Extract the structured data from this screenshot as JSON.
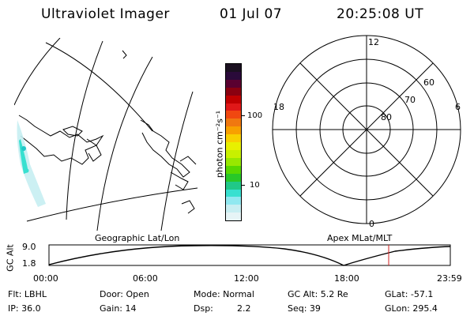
{
  "header": {
    "title": "Ultraviolet Imager",
    "date": "01 Jul 07",
    "time": "20:25:08 UT"
  },
  "colorbar": {
    "unit_label": "photon cm⁻²s⁻¹",
    "ticks": [
      "100",
      "10"
    ],
    "colors": [
      "#1a1020",
      "#2a0a3a",
      "#5a0030",
      "#8a0010",
      "#c00000",
      "#e01818",
      "#f04810",
      "#f07810",
      "#f8a000",
      "#f8d000",
      "#e8f000",
      "#c8f000",
      "#98e800",
      "#58d800",
      "#28c828",
      "#20c888",
      "#38e0d0",
      "#90e8f0",
      "#c8eef2",
      "#e6f4f6"
    ]
  },
  "panels": {
    "left_label": "Geographic Lat/Lon",
    "right_label": "Apex MLat/MLT"
  },
  "polar_plot": {
    "mlt_labels": {
      "top": "12",
      "left": "18",
      "right": "6",
      "bottom": "0"
    },
    "lat_labels": [
      "60",
      "70",
      "80"
    ]
  },
  "timeline": {
    "ylabel": "GC Alt",
    "ymax": "9.0",
    "ymin": "1.8",
    "xticks": [
      "00:00",
      "06:00",
      "12:00",
      "18:00",
      "23:59"
    ],
    "marker_color": "#d02020"
  },
  "info": {
    "flt": "Flt: LBHL",
    "door": "Door: Open",
    "mode": "Mode: Normal",
    "gcalt": "GC Alt: 5.2 Re",
    "glat": "GLat: -57.1",
    "ip": "IP: 36.0",
    "gain": "Gain: 14",
    "dsp_label": "Dsp:",
    "dsp_value": "2.2",
    "seq": "Seq: 39",
    "glon": "GLon: 295.4"
  }
}
